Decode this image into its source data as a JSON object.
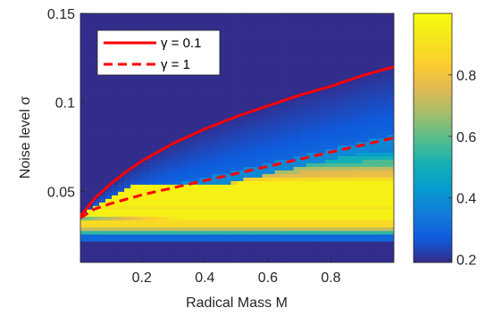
{
  "chart_data": {
    "type": "heatmap",
    "xlabel": "Radical Mass M",
    "ylabel": "Noise level σ",
    "xlim": [
      0.005,
      1.0
    ],
    "ylim": [
      0.01,
      0.15
    ],
    "x_ticks": [
      {
        "value": 0.2,
        "label": "0.2"
      },
      {
        "value": 0.4,
        "label": "0.4"
      },
      {
        "value": 0.6,
        "label": "0.6"
      },
      {
        "value": 0.8,
        "label": "0.8"
      }
    ],
    "y_ticks": [
      {
        "value": 0.05,
        "label": "0.05"
      },
      {
        "value": 0.1,
        "label": "0.1"
      },
      {
        "value": 0.15,
        "label": "0.15"
      }
    ],
    "colorbar": {
      "range": [
        0.19,
        1.0
      ],
      "ticks": [
        {
          "value": 0.2,
          "label": "0.2"
        },
        {
          "value": 0.4,
          "label": "0.4"
        },
        {
          "value": 0.6,
          "label": "0.6"
        },
        {
          "value": 0.8,
          "label": "0.8"
        }
      ],
      "colormap": "parula"
    },
    "legend": {
      "position": "top-left",
      "entries": [
        {
          "label": "γ = 0.1",
          "style": "solid",
          "color": "#ff0000"
        },
        {
          "label": "γ = 1",
          "style": "dashed",
          "color": "#ff0000"
        }
      ]
    },
    "series": [
      {
        "name": "γ = 0.1",
        "style": "solid",
        "color": "#ff0000",
        "x": [
          0.005,
          0.05,
          0.1,
          0.15,
          0.2,
          0.3,
          0.4,
          0.5,
          0.6,
          0.7,
          0.8,
          0.9,
          1.0
        ],
        "y": [
          0.036,
          0.046,
          0.054,
          0.061,
          0.067,
          0.077,
          0.085,
          0.092,
          0.098,
          0.104,
          0.109,
          0.115,
          0.12
        ]
      },
      {
        "name": "γ = 1",
        "style": "dashed",
        "color": "#ff0000",
        "x": [
          0.005,
          0.05,
          0.1,
          0.2,
          0.3,
          0.4,
          0.5,
          0.6,
          0.7,
          0.8,
          0.9,
          1.0
        ],
        "y": [
          0.035,
          0.04,
          0.043,
          0.048,
          0.052,
          0.056,
          0.06,
          0.064,
          0.068,
          0.072,
          0.076,
          0.08
        ]
      }
    ],
    "heatmap": {
      "x_bins": 50,
      "y_bins": 70,
      "description_values": "probability-like field: high (~0.95) in band 0.03-0.06 widening with M, low (~0.2) above the curves"
    }
  }
}
